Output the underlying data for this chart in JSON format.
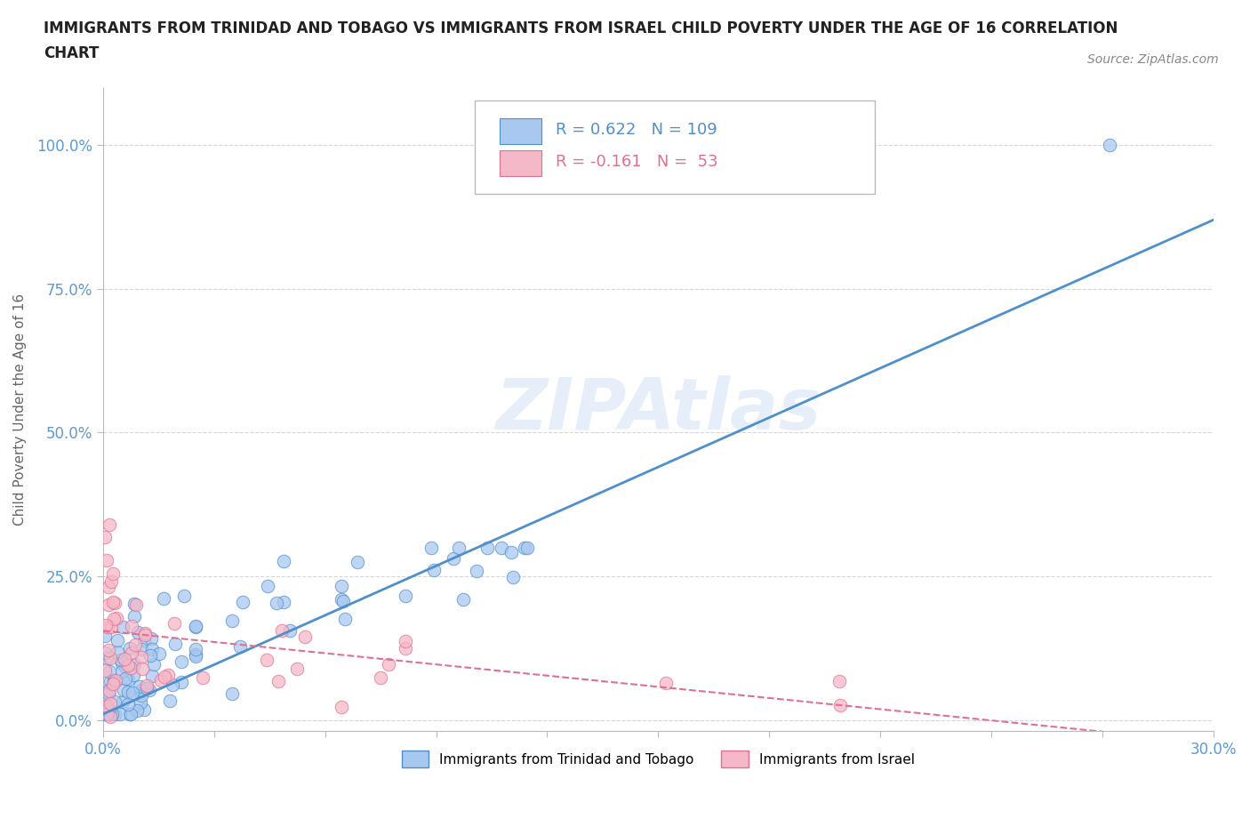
{
  "title": "IMMIGRANTS FROM TRINIDAD AND TOBAGO VS IMMIGRANTS FROM ISRAEL CHILD POVERTY UNDER THE AGE OF 16 CORRELATION\nCHART",
  "source": "Source: ZipAtlas.com",
  "ylabel": "Child Poverty Under the Age of 16",
  "xlim": [
    0.0,
    0.3
  ],
  "ylim": [
    -0.02,
    1.1
  ],
  "xticks": [
    0.0,
    0.03,
    0.06,
    0.09,
    0.12,
    0.15,
    0.18,
    0.21,
    0.24,
    0.27,
    0.3
  ],
  "yticks": [
    0.0,
    0.25,
    0.5,
    0.75,
    1.0
  ],
  "yticklabels": [
    "0.0%",
    "25.0%",
    "50.0%",
    "75.0%",
    "100.0%"
  ],
  "color_tt": "#a8c8f0",
  "color_israel": "#f5b8c8",
  "trendline_tt_color": "#4f8fcc",
  "trendline_israel_color": "#e07090",
  "R_tt": 0.622,
  "N_tt": 109,
  "R_israel": -0.161,
  "N_israel": 53,
  "legend_label_tt": "Immigrants from Trinidad and Tobago",
  "legend_label_israel": "Immigrants from Israel",
  "watermark": "ZIPAtlas",
  "background_color": "#ffffff",
  "tt_trendline_x0": 0.0,
  "tt_trendline_y0": 0.01,
  "tt_trendline_x1": 0.3,
  "tt_trendline_y1": 0.87,
  "israel_trendline_x0": 0.0,
  "israel_trendline_y0": 0.155,
  "israel_trendline_x1": 0.3,
  "israel_trendline_y1": -0.04
}
